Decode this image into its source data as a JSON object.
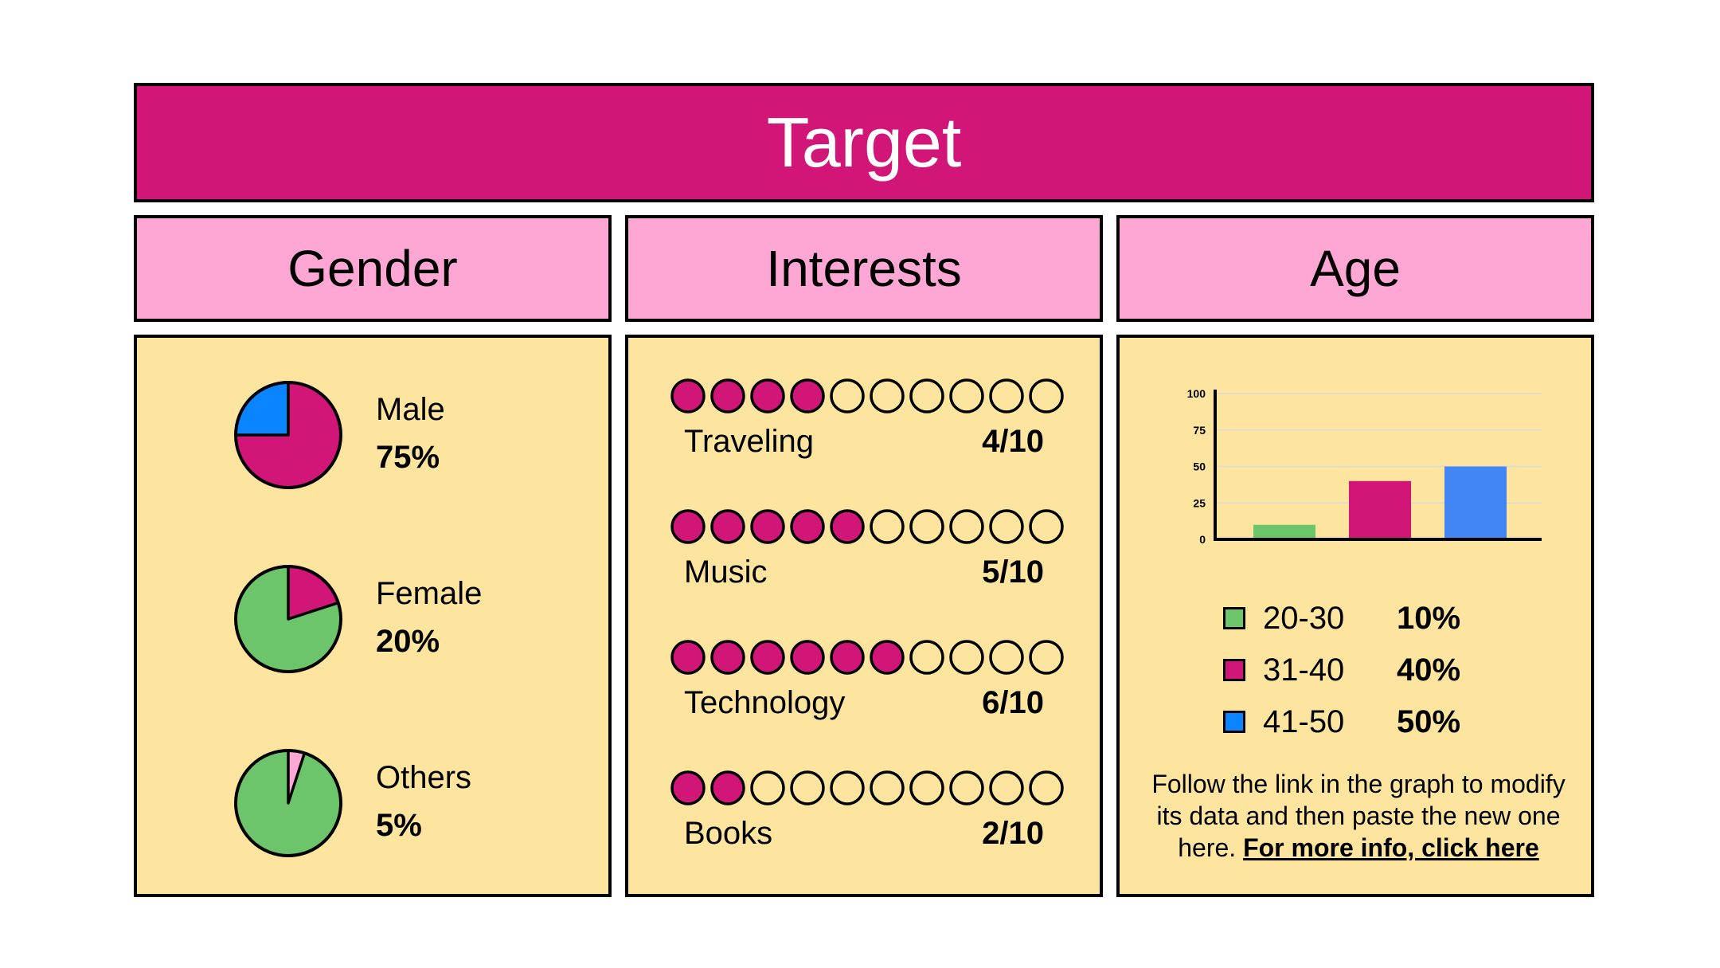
{
  "title": "Target",
  "colors": {
    "magenta": "#d11677",
    "pink": "#fea6d4",
    "panel": "#fde59f",
    "green": "#6cc56b",
    "blue": "#0a84ff",
    "bar_blue": "#4285f4"
  },
  "gender": {
    "heading": "Gender",
    "items": [
      {
        "label": "Male",
        "pct": "75%",
        "value": 75,
        "slice_color": "#0a84ff",
        "base_color": "#d11677"
      },
      {
        "label": "Female",
        "pct": "20%",
        "value": 20,
        "slice_color": "#d11677",
        "base_color": "#6cc56b"
      },
      {
        "label": "Others",
        "pct": "5%",
        "value": 5,
        "slice_color": "#fea6d4",
        "base_color": "#6cc56b"
      }
    ]
  },
  "interests": {
    "heading": "Interests",
    "items": [
      {
        "label": "Traveling",
        "score": "4/10",
        "filled": 4,
        "total": 10
      },
      {
        "label": "Music",
        "score": "5/10",
        "filled": 5,
        "total": 10
      },
      {
        "label": "Technology",
        "score": "6/10",
        "filled": 6,
        "total": 10
      },
      {
        "label": "Books",
        "score": "2/10",
        "filled": 2,
        "total": 10
      }
    ]
  },
  "age": {
    "heading": "Age",
    "chart_data": {
      "type": "bar",
      "categories": [
        "20-30",
        "31-40",
        "41-50"
      ],
      "values": [
        10,
        40,
        50
      ],
      "colors": [
        "#6cc56b",
        "#d11677",
        "#4285f4"
      ],
      "ylim": [
        0,
        100
      ],
      "yticks": [
        "0",
        "25",
        "50",
        "75",
        "100"
      ],
      "grid": true
    },
    "legend": [
      {
        "name": "20-30",
        "pct": "10%",
        "color": "#6cc56b"
      },
      {
        "name": "31-40",
        "pct": "40%",
        "color": "#d11677"
      },
      {
        "name": "41-50",
        "pct": "50%",
        "color": "#0a84ff"
      }
    ],
    "note": "Follow the link in the graph to modify its data and then paste the new one here.",
    "link_text": "For more info, click here"
  }
}
